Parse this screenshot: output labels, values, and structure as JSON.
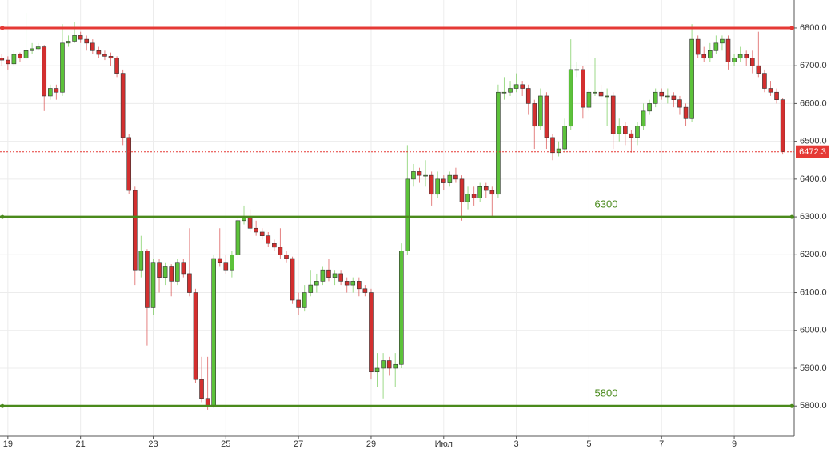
{
  "chart_data": {
    "type": "candlestick",
    "candles": [
      [
        6720,
        6730,
        6700,
        6715
      ],
      [
        6715,
        6725,
        6690,
        6705
      ],
      [
        6705,
        6740,
        6700,
        6730
      ],
      [
        6730,
        6735,
        6710,
        6720
      ],
      [
        6720,
        6840,
        6715,
        6740
      ],
      [
        6740,
        6760,
        6730,
        6745
      ],
      [
        6745,
        6760,
        6740,
        6750
      ],
      [
        6750,
        6755,
        6580,
        6620
      ],
      [
        6620,
        6650,
        6610,
        6640
      ],
      [
        6640,
        6650,
        6610,
        6630
      ],
      [
        6630,
        6810,
        6620,
        6760
      ],
      [
        6760,
        6780,
        6750,
        6765
      ],
      [
        6765,
        6815,
        6760,
        6780
      ],
      [
        6780,
        6790,
        6760,
        6770
      ],
      [
        6770,
        6780,
        6740,
        6760
      ],
      [
        6760,
        6770,
        6730,
        6740
      ],
      [
        6740,
        6750,
        6720,
        6730
      ],
      [
        6730,
        6740,
        6715,
        6725
      ],
      [
        6725,
        6735,
        6700,
        6720
      ],
      [
        6720,
        6725,
        6670,
        6680
      ],
      [
        6680,
        6690,
        6490,
        6510
      ],
      [
        6510,
        6520,
        6360,
        6370
      ],
      [
        6370,
        6380,
        6120,
        6160
      ],
      [
        6160,
        6250,
        6140,
        6210
      ],
      [
        6210,
        6215,
        5960,
        6060
      ],
      [
        6060,
        6190,
        6040,
        6180
      ],
      [
        6180,
        6190,
        6100,
        6140
      ],
      [
        6140,
        6180,
        6120,
        6170
      ],
      [
        6170,
        6175,
        6090,
        6130
      ],
      [
        6130,
        6190,
        6120,
        6180
      ],
      [
        6180,
        6190,
        6140,
        6150
      ],
      [
        6150,
        6270,
        6090,
        6100
      ],
      [
        6100,
        6110,
        5860,
        5870
      ],
      [
        5870,
        5930,
        5810,
        5820
      ],
      [
        5820,
        5930,
        5790,
        5800
      ],
      [
        5800,
        6200,
        5795,
        6190
      ],
      [
        6190,
        6270,
        6170,
        6180
      ],
      [
        6180,
        6200,
        6150,
        6160
      ],
      [
        6160,
        6210,
        6140,
        6200
      ],
      [
        6200,
        6300,
        6190,
        6290
      ],
      [
        6290,
        6330,
        6280,
        6300
      ],
      [
        6300,
        6320,
        6260,
        6270
      ],
      [
        6270,
        6290,
        6250,
        6260
      ],
      [
        6260,
        6270,
        6240,
        6250
      ],
      [
        6250,
        6260,
        6220,
        6230
      ],
      [
        6230,
        6240,
        6210,
        6220
      ],
      [
        6220,
        6270,
        6190,
        6200
      ],
      [
        6200,
        6210,
        6180,
        6190
      ],
      [
        6190,
        6195,
        6070,
        6080
      ],
      [
        6080,
        6100,
        6040,
        6060
      ],
      [
        6060,
        6120,
        6050,
        6100
      ],
      [
        6100,
        6160,
        6090,
        6120
      ],
      [
        6120,
        6150,
        6100,
        6130
      ],
      [
        6130,
        6170,
        6120,
        6160
      ],
      [
        6160,
        6190,
        6130,
        6140
      ],
      [
        6140,
        6160,
        6120,
        6150
      ],
      [
        6150,
        6160,
        6120,
        6130
      ],
      [
        6130,
        6140,
        6100,
        6120
      ],
      [
        6120,
        6140,
        6100,
        6130
      ],
      [
        6130,
        6140,
        6090,
        6110
      ],
      [
        6110,
        6120,
        6090,
        6100
      ],
      [
        6100,
        6110,
        5870,
        5890
      ],
      [
        5890,
        5940,
        5850,
        5900
      ],
      [
        5900,
        5940,
        5820,
        5920
      ],
      [
        5920,
        5930,
        5880,
        5900
      ],
      [
        5900,
        5940,
        5850,
        5910
      ],
      [
        5910,
        6230,
        5900,
        6210
      ],
      [
        6210,
        6490,
        6200,
        6400
      ],
      [
        6400,
        6440,
        6380,
        6420
      ],
      [
        6420,
        6430,
        6390,
        6410
      ],
      [
        6410,
        6450,
        6380,
        6410
      ],
      [
        6410,
        6420,
        6330,
        6360
      ],
      [
        6360,
        6420,
        6350,
        6400
      ],
      [
        6400,
        6410,
        6370,
        6390
      ],
      [
        6390,
        6420,
        6380,
        6410
      ],
      [
        6410,
        6430,
        6390,
        6400
      ],
      [
        6400,
        6410,
        6290,
        6340
      ],
      [
        6340,
        6380,
        6320,
        6360
      ],
      [
        6360,
        6380,
        6330,
        6350
      ],
      [
        6350,
        6390,
        6340,
        6380
      ],
      [
        6380,
        6390,
        6350,
        6370
      ],
      [
        6370,
        6380,
        6300,
        6360
      ],
      [
        6360,
        6650,
        6350,
        6630
      ],
      [
        6630,
        6670,
        6610,
        6630
      ],
      [
        6630,
        6660,
        6620,
        6640
      ],
      [
        6640,
        6680,
        6630,
        6650
      ],
      [
        6650,
        6660,
        6620,
        6640
      ],
      [
        6640,
        6650,
        6570,
        6600
      ],
      [
        6600,
        6610,
        6480,
        6540
      ],
      [
        6540,
        6640,
        6530,
        6620
      ],
      [
        6620,
        6630,
        6480,
        6510
      ],
      [
        6510,
        6520,
        6450,
        6470
      ],
      [
        6470,
        6500,
        6460,
        6480
      ],
      [
        6480,
        6560,
        6470,
        6540
      ],
      [
        6540,
        6770,
        6530,
        6690
      ],
      [
        6690,
        6710,
        6670,
        6690
      ],
      [
        6690,
        6700,
        6560,
        6590
      ],
      [
        6590,
        6640,
        6580,
        6630
      ],
      [
        6630,
        6720,
        6620,
        6630
      ],
      [
        6630,
        6650,
        6610,
        6620
      ],
      [
        6620,
        6640,
        6540,
        6620
      ],
      [
        6620,
        6630,
        6480,
        6520
      ],
      [
        6520,
        6560,
        6500,
        6540
      ],
      [
        6540,
        6550,
        6490,
        6520
      ],
      [
        6520,
        6530,
        6470,
        6510
      ],
      [
        6510,
        6550,
        6490,
        6540
      ],
      [
        6540,
        6600,
        6530,
        6580
      ],
      [
        6580,
        6610,
        6570,
        6600
      ],
      [
        6600,
        6640,
        6590,
        6630
      ],
      [
        6630,
        6640,
        6610,
        6620
      ],
      [
        6620,
        6640,
        6600,
        6620
      ],
      [
        6620,
        6630,
        6590,
        6610
      ],
      [
        6610,
        6620,
        6570,
        6590
      ],
      [
        6590,
        6600,
        6540,
        6560
      ],
      [
        6560,
        6810,
        6550,
        6770
      ],
      [
        6770,
        6780,
        6720,
        6730
      ],
      [
        6730,
        6750,
        6710,
        6720
      ],
      [
        6720,
        6760,
        6710,
        6740
      ],
      [
        6740,
        6780,
        6730,
        6760
      ],
      [
        6760,
        6780,
        6740,
        6770
      ],
      [
        6770,
        6780,
        6690,
        6710
      ],
      [
        6710,
        6730,
        6700,
        6720
      ],
      [
        6720,
        6750,
        6710,
        6730
      ],
      [
        6730,
        6740,
        6700,
        6720
      ],
      [
        6720,
        6740,
        6680,
        6700
      ],
      [
        6700,
        6790,
        6670,
        6680
      ],
      [
        6680,
        6690,
        6630,
        6640
      ],
      [
        6640,
        6660,
        6620,
        6630
      ],
      [
        6630,
        6640,
        6600,
        6610
      ],
      [
        6610,
        6615,
        6465,
        6472.3
      ]
    ],
    "up_color": "#5cc23a",
    "down_color": "#d32f2f",
    "xlim": [
      -0.3,
      130.9
    ],
    "xticks": [
      {
        "value": 1,
        "label": "19"
      },
      {
        "value": 13,
        "label": "21"
      },
      {
        "value": 25,
        "label": "23"
      },
      {
        "value": 37,
        "label": "25"
      },
      {
        "value": 49,
        "label": "27"
      },
      {
        "value": 61,
        "label": "29"
      },
      {
        "value": 73,
        "label": "Июл"
      },
      {
        "value": 85,
        "label": "3"
      },
      {
        "value": 97,
        "label": "5"
      },
      {
        "value": 109,
        "label": "7"
      },
      {
        "value": 121,
        "label": "9"
      }
    ],
    "ylim": [
      5720,
      6874
    ],
    "yticks": [
      {
        "value": 5800,
        "label": "5800.0"
      },
      {
        "value": 5900,
        "label": "5900.0"
      },
      {
        "value": 6000,
        "label": "6000.0"
      },
      {
        "value": 6100,
        "label": "6100.0"
      },
      {
        "value": 6200,
        "label": "6200.0"
      },
      {
        "value": 6300,
        "label": "6300.0"
      },
      {
        "value": 6400,
        "label": "6400.0"
      },
      {
        "value": 6500,
        "label": "6500.0"
      },
      {
        "value": 6600,
        "label": "6600.0"
      },
      {
        "value": 6700,
        "label": "6700.0"
      },
      {
        "value": 6800,
        "label": "6800.0"
      }
    ],
    "grid": true,
    "hlines": [
      {
        "value": 6800,
        "color": "#e53935",
        "labeled": false
      },
      {
        "value": 6300,
        "color": "#4a8a1c",
        "labeled": true
      },
      {
        "value": 5800,
        "color": "#4a8a1c",
        "labeled": true
      }
    ],
    "last_price_color": "#e53935"
  }
}
